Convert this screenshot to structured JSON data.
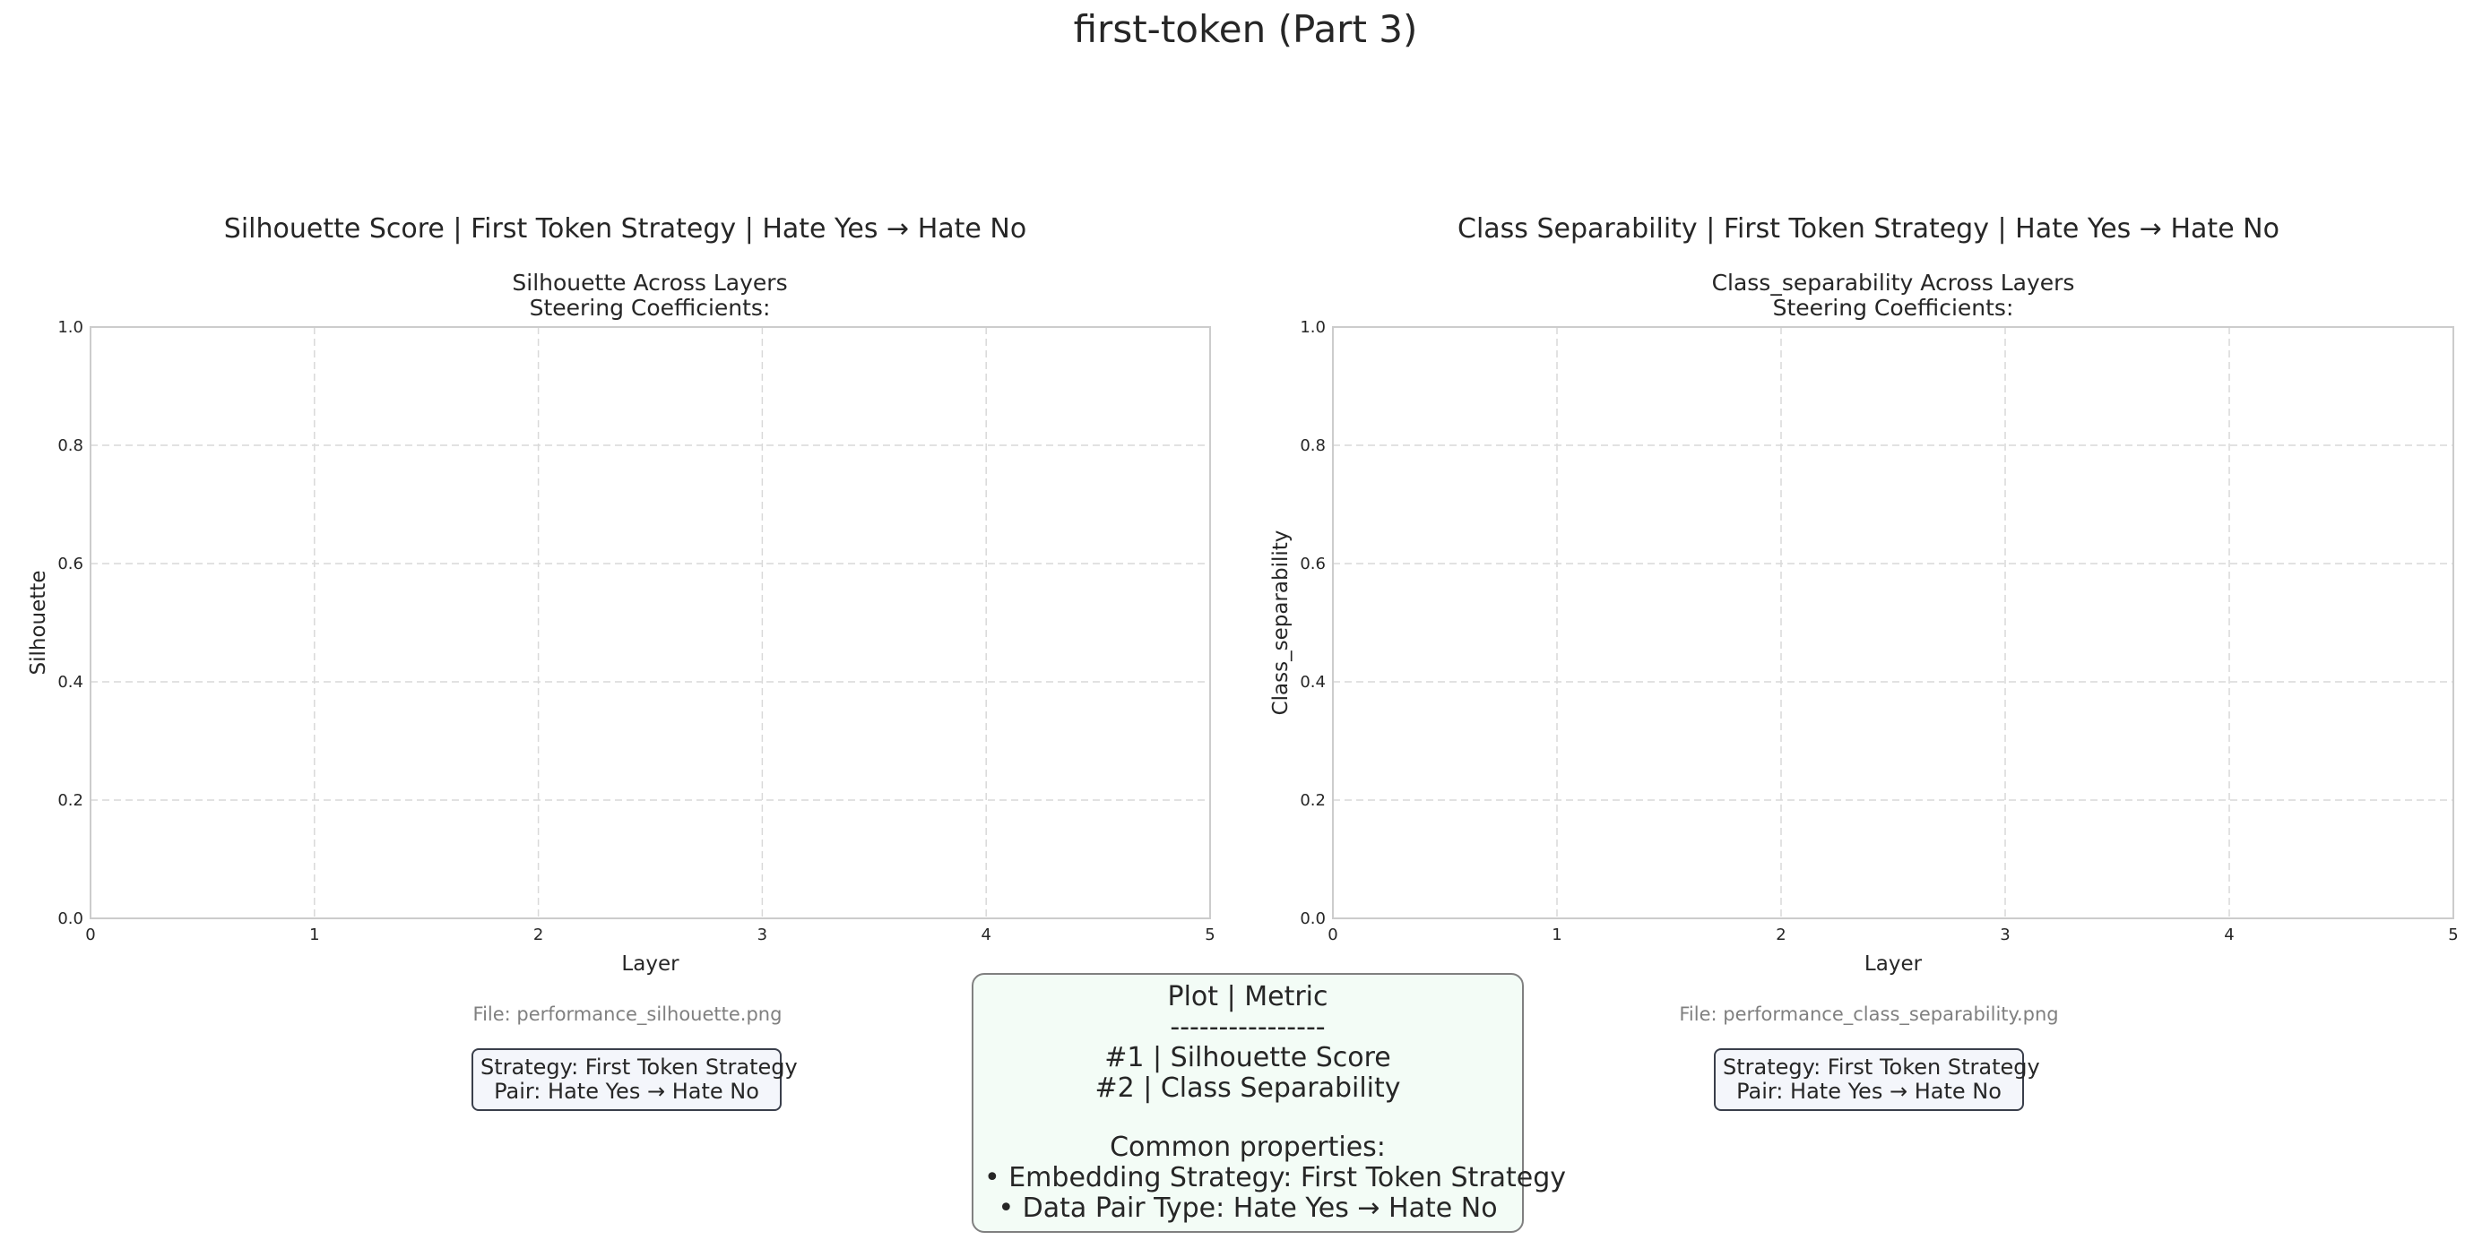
{
  "page": {
    "title": "first-token (Part 3)"
  },
  "chart_data": [
    {
      "type": "line",
      "panel_title": "Silhouette Score | First Token Strategy | Hate Yes → Hate No",
      "title": "Silhouette Across Layers",
      "subtitle": "Steering Coefficients:",
      "xlabel": "Layer",
      "ylabel": "Silhouette",
      "xlim": [
        0,
        5
      ],
      "ylim": [
        0,
        1.0
      ],
      "xticks": [
        "0",
        "1",
        "2",
        "3",
        "4",
        "5"
      ],
      "yticks": [
        "0.0",
        "0.2",
        "0.4",
        "0.6",
        "0.8",
        "1.0"
      ],
      "grid": true,
      "series": [],
      "file_label": "File: performance_silhouette.png",
      "info": [
        "Strategy: First Token Strategy",
        "Pair: Hate Yes → Hate No"
      ]
    },
    {
      "type": "line",
      "panel_title": "Class Separability | First Token Strategy | Hate Yes → Hate No",
      "title": "Class_separability Across Layers",
      "subtitle": "Steering Coefficients:",
      "xlabel": "Layer",
      "ylabel": "Class_separability",
      "xlim": [
        0,
        5
      ],
      "ylim": [
        0,
        1.0
      ],
      "xticks": [
        "0",
        "1",
        "2",
        "3",
        "4",
        "5"
      ],
      "yticks": [
        "0.0",
        "0.2",
        "0.4",
        "0.6",
        "0.8",
        "1.0"
      ],
      "grid": true,
      "series": [],
      "file_label": "File: performance_class_separability.png",
      "info": [
        "Strategy: First Token Strategy",
        "Pair: Hate Yes → Hate No"
      ]
    }
  ],
  "legend": {
    "heading": "Plot | Metric",
    "rule": "----------------",
    "rows": [
      "#1 | Silhouette Score",
      "#2 | Class Separability"
    ],
    "common_heading": "Common properties:",
    "common": [
      "• Embedding Strategy: First Token Strategy",
      "• Data Pair Type: Hate Yes → Hate No"
    ]
  }
}
